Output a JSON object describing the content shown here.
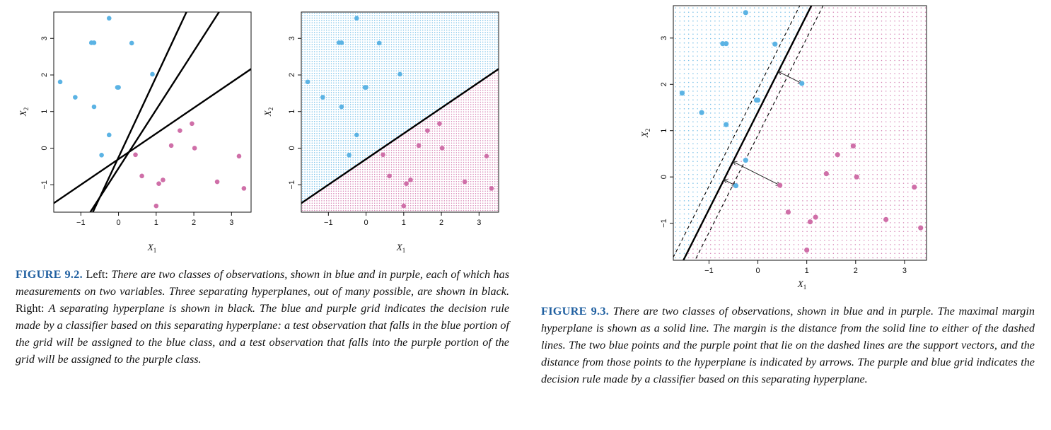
{
  "colors": {
    "blue": "#5bb3e4",
    "purple": "#cf6fa8",
    "caption_label": "#1f5fa0"
  },
  "points": {
    "blue": [
      [
        -0.25,
        3.55
      ],
      [
        -0.65,
        2.88
      ],
      [
        -0.72,
        2.88
      ],
      [
        0.35,
        2.87
      ],
      [
        0.9,
        2.02
      ],
      [
        -1.55,
        1.81
      ],
      [
        -1.15,
        1.39
      ],
      [
        0.0,
        1.66
      ],
      [
        -0.03,
        1.66
      ],
      [
        -0.65,
        1.13
      ],
      [
        -0.25,
        0.36
      ],
      [
        -0.45,
        -0.19
      ]
    ],
    "purple": [
      [
        1.95,
        0.67
      ],
      [
        1.63,
        0.48
      ],
      [
        1.4,
        0.07
      ],
      [
        2.02,
        0.0
      ],
      [
        0.45,
        -0.18
      ],
      [
        3.2,
        -0.22
      ],
      [
        0.62,
        -0.76
      ],
      [
        1.18,
        -0.87
      ],
      [
        1.07,
        -0.97
      ],
      [
        2.62,
        -0.92
      ],
      [
        3.33,
        -1.1
      ],
      [
        1.0,
        -1.58
      ]
    ]
  },
  "figure_9_2": {
    "label": "FIGURE 9.2.",
    "seg1_plain": "Left:",
    "seg1_italic": "There are two classes of observations, shown in blue and in purple, each of which has measurements on two variables. Three separating hyperplanes, out of many possible, are shown in black.",
    "seg2_plain": "Right:",
    "seg2_italic": "A separating hyperplane is shown in black. The blue and purple grid indicates the decision rule made by a classifier based on this separating hyperplane: a test observation that falls in the blue portion of the grid will be assigned to the blue class, and a test observation that falls into the purple portion of the grid will be assigned to the purple class.",
    "left_panel": {
      "hyperplanes": [
        {
          "slope": 1.6,
          "intercept": -0.55
        },
        {
          "slope": 2.2,
          "intercept": -0.25
        },
        {
          "slope": 0.7,
          "intercept": -0.3
        }
      ]
    },
    "right_panel": {
      "hyperplane": {
        "slope": 0.7,
        "intercept": -0.3
      }
    }
  },
  "figure_9_3": {
    "label": "FIGURE 9.3.",
    "text": "There are two classes of observations, shown in blue and in purple. The maximal margin hyperplane is shown as a solid line. The margin is the distance from the solid line to either of the dashed lines. The two blue points and the purple point that lie on the dashed lines are the support vectors, and the distance from those points to the hyperplane is indicated by arrows. The purple and blue grid indicates the decision rule made by a classifier based on this separating hyperplane.",
    "hyperplane": {
      "slope": 2.1,
      "intercept": 1.4
    },
    "margin_offset": 0.5,
    "support_vectors": [
      [
        0.9,
        2.02
      ],
      [
        -0.45,
        -0.19
      ],
      [
        0.45,
        -0.18
      ]
    ]
  },
  "axes": {
    "x_label": "X",
    "x_sub": "1",
    "y_label": "X",
    "y_sub": "2",
    "fig92_x_ticks": [
      "−1",
      "0",
      "1",
      "2",
      "3"
    ],
    "fig92_y_ticks": [
      "−1",
      "0",
      "1",
      "2",
      "3"
    ],
    "fig93_x_ticks": [
      "−1",
      "0",
      "1",
      "2",
      "3"
    ],
    "fig93_y_ticks": [
      "−1",
      "0",
      "1",
      "2",
      "3"
    ]
  }
}
